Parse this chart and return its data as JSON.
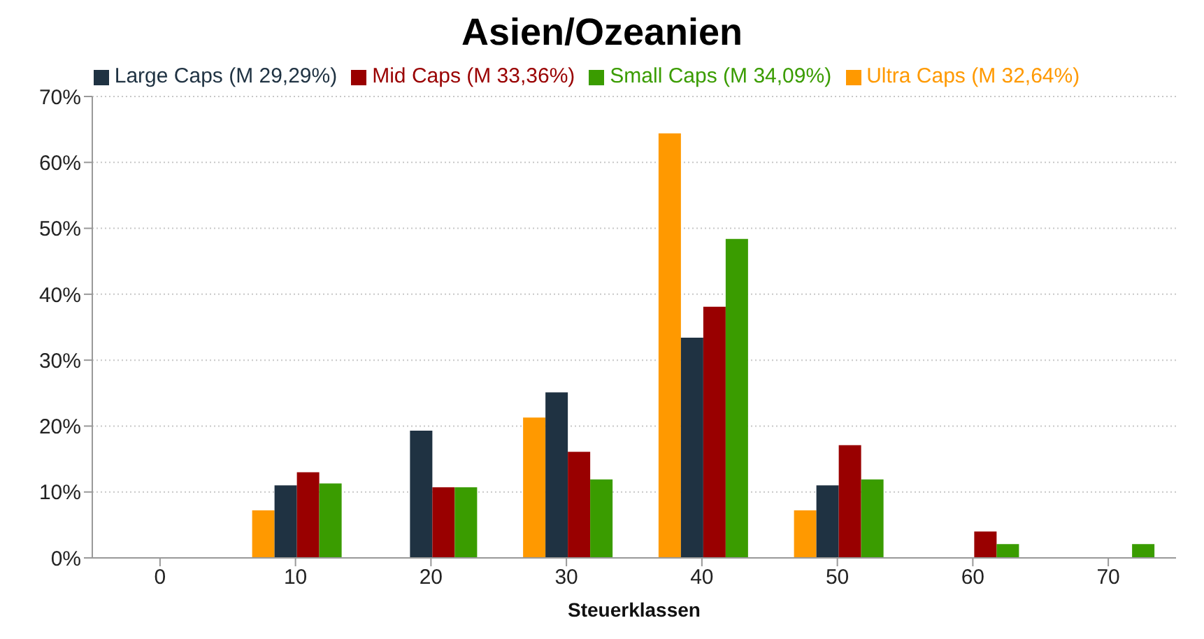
{
  "chart_data": {
    "type": "bar",
    "title": "Asien/Ozeanien",
    "xlabel": "Steuerklassen",
    "categories": [
      "0",
      "10",
      "20",
      "30",
      "40",
      "50",
      "60",
      "70"
    ],
    "series": [
      {
        "name": "Ultra Caps (M 32,64%)",
        "color": "#ff9900",
        "values": [
          0,
          7.2,
          0,
          21.3,
          64.4,
          7.2,
          0,
          0
        ]
      },
      {
        "name": "Large Caps (M 29,29%)",
        "color": "#1f3242",
        "values": [
          0,
          11.0,
          19.3,
          25.1,
          33.4,
          11.0,
          0,
          0
        ]
      },
      {
        "name": "Mid Caps (M 33,36%)",
        "color": "#990000",
        "values": [
          0,
          13.0,
          10.7,
          16.1,
          38.1,
          17.1,
          4.0,
          0
        ]
      },
      {
        "name": "Small Caps (M 34,09%)",
        "color": "#3a9c00",
        "values": [
          0,
          11.3,
          10.7,
          11.9,
          48.4,
          11.9,
          2.1,
          2.1
        ]
      }
    ],
    "ylim": [
      0,
      70
    ],
    "yticks": [
      {
        "value": 0,
        "label": "0%"
      },
      {
        "value": 10,
        "label": "10%"
      },
      {
        "value": 20,
        "label": "20%"
      },
      {
        "value": 30,
        "label": "30%"
      },
      {
        "value": 40,
        "label": "40%"
      },
      {
        "value": 50,
        "label": "50%"
      },
      {
        "value": 60,
        "label": "60%"
      },
      {
        "value": 70,
        "label": "70%"
      }
    ],
    "grid": "y",
    "legend": "top"
  }
}
